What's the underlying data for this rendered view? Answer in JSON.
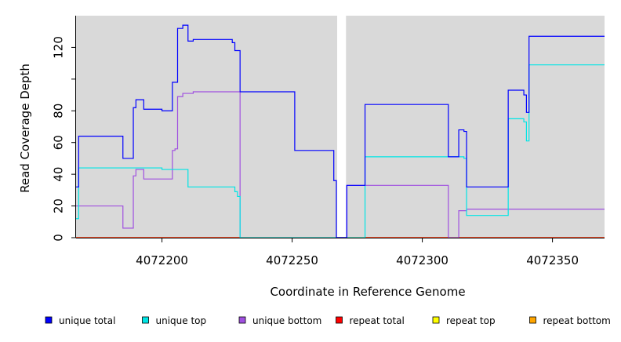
{
  "chart_data": {
    "type": "line",
    "title": "",
    "xlabel": "Coordinate in Reference Genome",
    "ylabel": "Read Coverage Depth",
    "xlim": [
      4072167,
      4072370
    ],
    "ylim": [
      0,
      140
    ],
    "x_ticks": [
      4072200,
      4072250,
      4072300,
      4072350
    ],
    "y_ticks": [
      0,
      20,
      40,
      60,
      80,
      120
    ],
    "y_minor_ticks": [
      100
    ],
    "grid": false,
    "background": "#d9d9d9",
    "uncovered_regions": [
      [
        4072267,
        4072271
      ]
    ],
    "legend_position": "bottom",
    "series": [
      {
        "name": "unique total",
        "color": "#0000ff",
        "step_points": [
          [
            4072167,
            32
          ],
          [
            4072168,
            64
          ],
          [
            4072185,
            50
          ],
          [
            4072189,
            82
          ],
          [
            4072190,
            87
          ],
          [
            4072193,
            81
          ],
          [
            4072200,
            80
          ],
          [
            4072204,
            98
          ],
          [
            4072206,
            132
          ],
          [
            4072208,
            134
          ],
          [
            4072210,
            124
          ],
          [
            4072212,
            125
          ],
          [
            4072227,
            123
          ],
          [
            4072228,
            118
          ],
          [
            4072230,
            92
          ],
          [
            4072251,
            55
          ],
          [
            4072266,
            36
          ],
          [
            4072267,
            0
          ],
          [
            4072271,
            33
          ],
          [
            4072278,
            84
          ],
          [
            4072310,
            51
          ],
          [
            4072314,
            68
          ],
          [
            4072316,
            67
          ],
          [
            4072317,
            32
          ],
          [
            4072333,
            93
          ],
          [
            4072339,
            90
          ],
          [
            4072340,
            79
          ],
          [
            4072341,
            127
          ],
          [
            4072370,
            127
          ]
        ]
      },
      {
        "name": "unique top",
        "color": "#00e5e5",
        "step_points": [
          [
            4072167,
            12
          ],
          [
            4072168,
            44
          ],
          [
            4072200,
            43
          ],
          [
            4072210,
            32
          ],
          [
            4072228,
            29
          ],
          [
            4072229,
            26
          ],
          [
            4072230,
            0
          ],
          [
            4072278,
            51
          ],
          [
            4072316,
            50
          ],
          [
            4072317,
            14
          ],
          [
            4072333,
            75
          ],
          [
            4072339,
            73
          ],
          [
            4072340,
            61
          ],
          [
            4072341,
            109
          ],
          [
            4072370,
            109
          ]
        ]
      },
      {
        "name": "unique bottom",
        "color": "#a050e0",
        "step_points": [
          [
            4072167,
            20
          ],
          [
            4072185,
            6
          ],
          [
            4072189,
            39
          ],
          [
            4072190,
            43
          ],
          [
            4072193,
            37
          ],
          [
            4072204,
            55
          ],
          [
            4072205,
            56
          ],
          [
            4072206,
            89
          ],
          [
            4072208,
            91
          ],
          [
            4072212,
            92
          ],
          [
            4072230,
            0
          ],
          [
            4072271,
            33
          ],
          [
            4072310,
            0
          ],
          [
            4072314,
            17
          ],
          [
            4072317,
            18
          ],
          [
            4072370,
            18
          ]
        ]
      },
      {
        "name": "repeat total",
        "color": "#ff0000",
        "step_points": [
          [
            4072167,
            0
          ],
          [
            4072370,
            0
          ]
        ]
      },
      {
        "name": "repeat top",
        "color": "#ffff00",
        "step_points": [
          [
            4072167,
            0
          ],
          [
            4072370,
            0
          ]
        ]
      },
      {
        "name": "repeat bottom",
        "color": "#ffa500",
        "step_points": [
          [
            4072167,
            0
          ],
          [
            4072370,
            0
          ]
        ]
      }
    ]
  }
}
